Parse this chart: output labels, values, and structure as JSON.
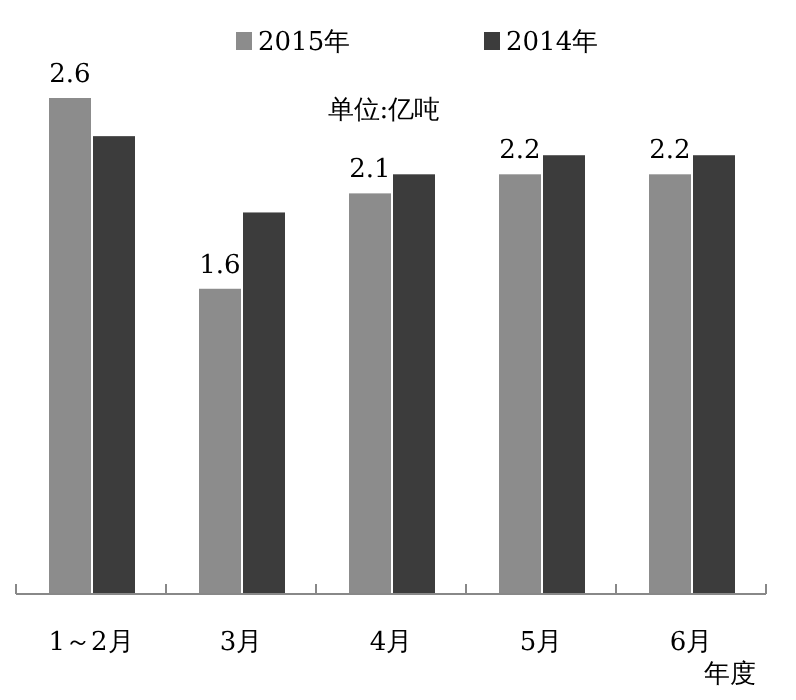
{
  "chart_data": {
    "type": "bar",
    "categories": [
      "1～2月",
      "3月",
      "4月",
      "5月",
      "6月"
    ],
    "xlabel": "年度",
    "annotations": [
      "单位:亿吨"
    ],
    "legend": "top",
    "series": [
      {
        "name": "2015年",
        "color": "#8c8c8c",
        "values": [
          2.6,
          1.6,
          2.1,
          2.2,
          2.2
        ],
        "value_labels": [
          "2.6",
          "1.6",
          "2.1",
          "2.2",
          "2.2"
        ]
      },
      {
        "name": "2014年",
        "color": "#3c3c3c",
        "values": [
          2.4,
          2.0,
          2.2,
          2.3,
          2.3
        ]
      }
    ]
  }
}
